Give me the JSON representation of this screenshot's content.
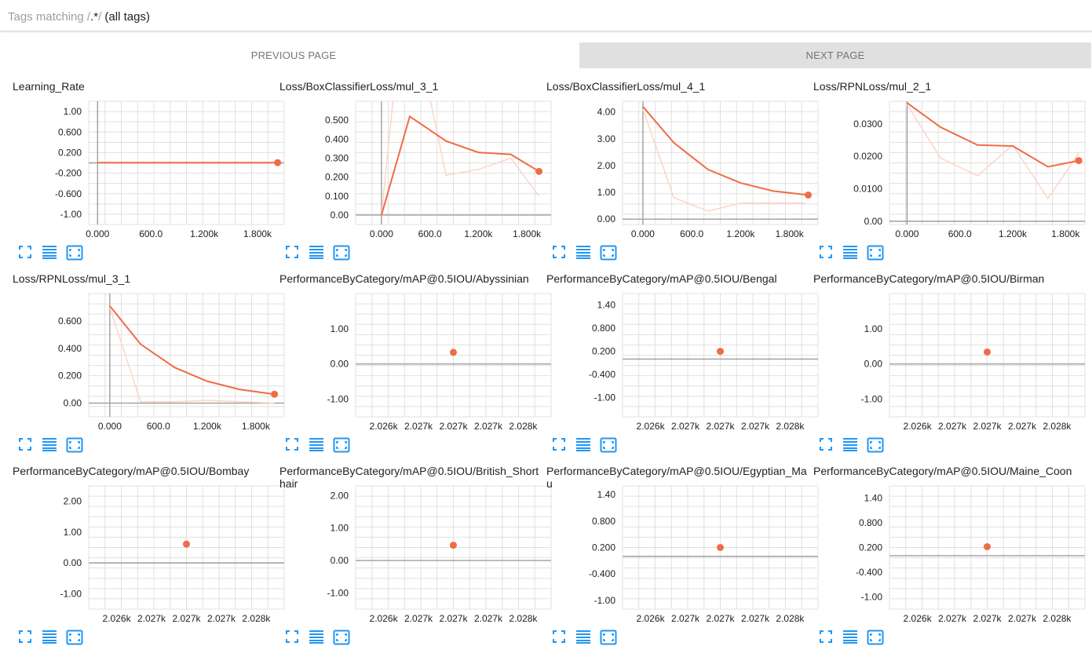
{
  "tag_filter": {
    "placeholder": "Tags matching /",
    "regex": ".*",
    "slash": "/",
    "suffix": "(all tags)"
  },
  "pagination": {
    "previous_label": "PREVIOUS PAGE",
    "next_label": "NEXT PAGE"
  },
  "controls": {
    "icons": [
      "fullscreen-icon",
      "data-table-icon",
      "fit-domain-icon"
    ]
  },
  "colors": {
    "line": "#f06c45",
    "smoothed_raw": "#fcd5c8",
    "grid": "#e0e0e0",
    "axis": "#9e9e9e"
  },
  "cards": [
    {
      "title": "Learning_Rate",
      "chart_data": {
        "type": "line",
        "xlim": [
          -100,
          2100
        ],
        "ylim": [
          -1.2,
          1.2
        ],
        "xticks": [
          0,
          600,
          1200,
          1800
        ],
        "xtick_labels": [
          "0.000",
          "600.0",
          "1.200k",
          "1.800k"
        ],
        "yticks": [
          1.0,
          0.6,
          0.2,
          -0.2,
          -0.6,
          -1.0
        ],
        "ytick_labels": [
          "1.00",
          "0.600",
          "0.200",
          "-0.200",
          "-0.600",
          "-1.00"
        ],
        "series": [
          {
            "role": "raw",
            "x": [
              0,
              2026
            ],
            "y": [
              0.004,
              0.004
            ]
          },
          {
            "role": "smoothed",
            "x": [
              0,
              2026
            ],
            "y": [
              0.004,
              0.004
            ]
          }
        ],
        "highlight": [
          2026,
          0.004
        ]
      }
    },
    {
      "title": "Loss/BoxClassifierLoss/mul_3_1",
      "chart_data": {
        "type": "line",
        "xlim": [
          -320,
          2100
        ],
        "ylim": [
          -0.05,
          0.6
        ],
        "xticks": [
          0,
          600,
          1200,
          1800
        ],
        "xtick_labels": [
          "0.000",
          "600.0",
          "1.200k",
          "1.800k"
        ],
        "yticks": [
          0.5,
          0.4,
          0.3,
          0.2,
          0.1,
          0.0
        ],
        "ytick_labels": [
          "0.500",
          "0.400",
          "0.300",
          "0.200",
          "0.100",
          "0.00"
        ],
        "series": [
          {
            "role": "raw",
            "x": [
              0,
              200,
              500,
              800,
              1200,
              1600,
              1950
            ],
            "y": [
              0.0,
              0.85,
              0.82,
              0.21,
              0.24,
              0.3,
              0.1
            ]
          },
          {
            "role": "smoothed",
            "x": [
              0,
              350,
              800,
              1200,
              1600,
              1950
            ],
            "y": [
              0.0,
              0.52,
              0.39,
              0.33,
              0.32,
              0.23
            ]
          }
        ],
        "highlight": [
          1950,
          0.23
        ]
      }
    },
    {
      "title": "Loss/BoxClassifierLoss/mul_4_1",
      "chart_data": {
        "type": "line",
        "xlim": [
          -250,
          2150
        ],
        "ylim": [
          -0.2,
          4.4
        ],
        "xticks": [
          0,
          600,
          1200,
          1800
        ],
        "xtick_labels": [
          "0.000",
          "600.0",
          "1.200k",
          "1.800k"
        ],
        "yticks": [
          4.0,
          3.0,
          2.0,
          1.0,
          0.0
        ],
        "ytick_labels": [
          "4.00",
          "3.00",
          "2.00",
          "1.00",
          "0.00"
        ],
        "series": [
          {
            "role": "raw",
            "x": [
              0,
              380,
              800,
              1200,
              1600,
              2000
            ],
            "y": [
              4.1,
              0.8,
              0.3,
              0.6,
              0.6,
              0.6
            ]
          },
          {
            "role": "smoothed",
            "x": [
              0,
              380,
              800,
              1200,
              1600,
              2030
            ],
            "y": [
              4.2,
              2.85,
              1.85,
              1.35,
              1.05,
              0.9
            ]
          }
        ],
        "highlight": [
          2030,
          0.9
        ]
      }
    },
    {
      "title": "Loss/RPNLoss/mul_2_1",
      "chart_data": {
        "type": "line",
        "xlim": [
          -200,
          2020
        ],
        "ylim": [
          -0.001,
          0.037
        ],
        "xticks": [
          0,
          600,
          1200,
          1800
        ],
        "xtick_labels": [
          "0.000",
          "600.0",
          "1.200k",
          "1.800k"
        ],
        "yticks": [
          0.03,
          0.02,
          0.01,
          0.0
        ],
        "ytick_labels": [
          "0.0300",
          "0.0200",
          "0.0100",
          "0.00"
        ],
        "series": [
          {
            "role": "raw",
            "x": [
              0,
              380,
              800,
              1200,
              1600,
              1950
            ],
            "y": [
              0.036,
              0.0195,
              0.014,
              0.0235,
              0.007,
              0.021
            ]
          },
          {
            "role": "smoothed",
            "x": [
              0,
              380,
              800,
              1200,
              1600,
              1950
            ],
            "y": [
              0.0365,
              0.029,
              0.0235,
              0.0232,
              0.0168,
              0.0187
            ]
          }
        ],
        "highlight": [
          1950,
          0.0187
        ]
      }
    },
    {
      "title": "Loss/RPNLoss/mul_3_1",
      "chart_data": {
        "type": "line",
        "xlim": [
          -260,
          2150
        ],
        "ylim": [
          -0.1,
          0.8
        ],
        "xticks": [
          0,
          600,
          1200,
          1800
        ],
        "xtick_labels": [
          "0.000",
          "600.0",
          "1.200k",
          "1.800k"
        ],
        "yticks": [
          0.6,
          0.4,
          0.2,
          0.0
        ],
        "ytick_labels": [
          "0.600",
          "0.400",
          "0.200",
          "0.00"
        ],
        "series": [
          {
            "role": "raw",
            "x": [
              0,
              380,
              800,
              1200,
              1600,
              2030
            ],
            "y": [
              0.7,
              0.01,
              0.01,
              0.02,
              0.01,
              0.0
            ]
          },
          {
            "role": "smoothed",
            "x": [
              0,
              380,
              800,
              1200,
              1600,
              2030
            ],
            "y": [
              0.71,
              0.43,
              0.26,
              0.16,
              0.1,
              0.065
            ]
          }
        ],
        "highlight": [
          2030,
          0.065
        ]
      }
    },
    {
      "title": "PerformanceByCategory/mAP@0.5IOU/Abyssinian",
      "chart_data": {
        "type": "scatter",
        "xlim": [
          2025.6,
          2028.4
        ],
        "ylim": [
          -1.5,
          2.0
        ],
        "xticks": [
          2026.0,
          2026.5,
          2027.0,
          2027.5,
          2028.0
        ],
        "xtick_labels": [
          "2.026k",
          "2.027k",
          "2.027k",
          "2.027k",
          "2.028k"
        ],
        "yticks": [
          1.0,
          0.0,
          -1.0
        ],
        "ytick_labels": [
          "1.00",
          "0.00",
          "-1.00"
        ],
        "series": [
          {
            "role": "point",
            "x": [
              2027.0
            ],
            "y": [
              0.33
            ]
          }
        ],
        "highlight": [
          2027.0,
          0.33
        ]
      }
    },
    {
      "title": "PerformanceByCategory/mAP@0.5IOU/Bengal",
      "chart_data": {
        "type": "scatter",
        "xlim": [
          2025.6,
          2028.4
        ],
        "ylim": [
          -1.5,
          1.7
        ],
        "xticks": [
          2026.0,
          2026.5,
          2027.0,
          2027.5,
          2028.0
        ],
        "xtick_labels": [
          "2.026k",
          "2.027k",
          "2.027k",
          "2.027k",
          "2.028k"
        ],
        "yticks": [
          1.4,
          0.8,
          0.2,
          -0.4,
          -1.0
        ],
        "ytick_labels": [
          "1.40",
          "0.800",
          "0.200",
          "-0.400",
          "-1.00"
        ],
        "series": [
          {
            "role": "point",
            "x": [
              2027.0
            ],
            "y": [
              0.2
            ]
          }
        ],
        "highlight": [
          2027.0,
          0.2
        ]
      }
    },
    {
      "title": "PerformanceByCategory/mAP@0.5IOU/Birman",
      "chart_data": {
        "type": "scatter",
        "xlim": [
          2025.6,
          2028.4
        ],
        "ylim": [
          -1.5,
          2.0
        ],
        "xticks": [
          2026.0,
          2026.5,
          2027.0,
          2027.5,
          2028.0
        ],
        "xtick_labels": [
          "2.026k",
          "2.027k",
          "2.027k",
          "2.027k",
          "2.028k"
        ],
        "yticks": [
          1.0,
          0.0,
          -1.0
        ],
        "ytick_labels": [
          "1.00",
          "0.00",
          "-1.00"
        ],
        "series": [
          {
            "role": "point",
            "x": [
              2027.0
            ],
            "y": [
              0.34
            ]
          }
        ],
        "highlight": [
          2027.0,
          0.34
        ]
      }
    },
    {
      "title": "PerformanceByCategory/mAP@0.5IOU/Bombay",
      "chart_data": {
        "type": "scatter",
        "xlim": [
          2025.6,
          2028.4
        ],
        "ylim": [
          -1.5,
          2.5
        ],
        "xticks": [
          2026.0,
          2026.5,
          2027.0,
          2027.5,
          2028.0
        ],
        "xtick_labels": [
          "2.026k",
          "2.027k",
          "2.027k",
          "2.027k",
          "2.028k"
        ],
        "yticks": [
          2.0,
          1.0,
          0.0,
          -1.0
        ],
        "ytick_labels": [
          "2.00",
          "1.00",
          "0.00",
          "-1.00"
        ],
        "series": [
          {
            "role": "point",
            "x": [
              2027.0
            ],
            "y": [
              0.61
            ]
          }
        ],
        "highlight": [
          2027.0,
          0.61
        ]
      }
    },
    {
      "title": "PerformanceByCategory/mAP@0.5IOU/British_Shorthair",
      "chart_data": {
        "type": "scatter",
        "xlim": [
          2025.6,
          2028.4
        ],
        "ylim": [
          -1.5,
          2.3
        ],
        "xticks": [
          2026.0,
          2026.5,
          2027.0,
          2027.5,
          2028.0
        ],
        "xtick_labels": [
          "2.026k",
          "2.027k",
          "2.027k",
          "2.027k",
          "2.028k"
        ],
        "yticks": [
          2.0,
          1.0,
          0.0,
          -1.0
        ],
        "ytick_labels": [
          "2.00",
          "1.00",
          "0.00",
          "-1.00"
        ],
        "series": [
          {
            "role": "point",
            "x": [
              2027.0
            ],
            "y": [
              0.47
            ]
          }
        ],
        "highlight": [
          2027.0,
          0.47
        ]
      }
    },
    {
      "title": "PerformanceByCategory/mAP@0.5IOU/Egyptian_Mau",
      "chart_data": {
        "type": "scatter",
        "xlim": [
          2025.6,
          2028.4
        ],
        "ylim": [
          -1.2,
          1.6
        ],
        "xticks": [
          2026.0,
          2026.5,
          2027.0,
          2027.5,
          2028.0
        ],
        "xtick_labels": [
          "2.026k",
          "2.027k",
          "2.027k",
          "2.027k",
          "2.028k"
        ],
        "yticks": [
          1.4,
          0.8,
          0.2,
          -0.4,
          -1.0
        ],
        "ytick_labels": [
          "1.40",
          "0.800",
          "0.200",
          "-0.400",
          "-1.00"
        ],
        "series": [
          {
            "role": "point",
            "x": [
              2027.0
            ],
            "y": [
              0.2
            ]
          }
        ],
        "highlight": [
          2027.0,
          0.2
        ]
      }
    },
    {
      "title": "PerformanceByCategory/mAP@0.5IOU/Maine_Coon",
      "chart_data": {
        "type": "scatter",
        "xlim": [
          2025.6,
          2028.4
        ],
        "ylim": [
          -1.3,
          1.7
        ],
        "xticks": [
          2026.0,
          2026.5,
          2027.0,
          2027.5,
          2028.0
        ],
        "xtick_labels": [
          "2.026k",
          "2.027k",
          "2.027k",
          "2.027k",
          "2.028k"
        ],
        "yticks": [
          1.4,
          0.8,
          0.2,
          -0.4,
          -1.0
        ],
        "ytick_labels": [
          "1.40",
          "0.800",
          "0.200",
          "-0.400",
          "-1.00"
        ],
        "series": [
          {
            "role": "point",
            "x": [
              2027.0
            ],
            "y": [
              0.22
            ]
          }
        ],
        "highlight": [
          2027.0,
          0.22
        ]
      }
    }
  ]
}
